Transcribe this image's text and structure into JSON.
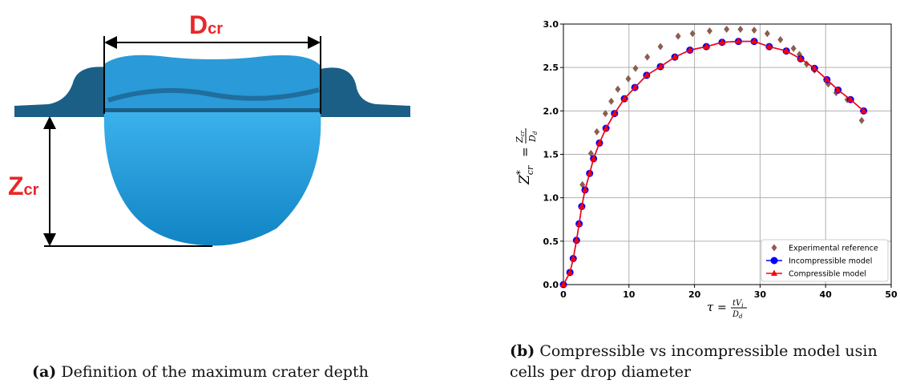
{
  "figure_a": {
    "d_label": "D",
    "d_sub": "cr",
    "z_label": "Z",
    "z_sub": "cr",
    "caption_tag": "(a)",
    "caption": "Definition of the maximum crater depth"
  },
  "figure_b": {
    "caption_tag": "(b)",
    "caption_line1": "Compressible vs incompressible model usin",
    "caption_line2": "cells per drop diameter"
  },
  "chart_data": {
    "type": "scatter",
    "xlabel": {
      "symbol": "τ",
      "eq": "=",
      "num": "tV",
      "num_sub": "i",
      "den": "D",
      "den_sub": "d"
    },
    "ylabel": {
      "symbol": "Z",
      "sup": "*",
      "sub": "cr",
      "eq": "=",
      "num": "Z",
      "num_sub": "cr",
      "den": "D",
      "den_sub": "d"
    },
    "xlim": [
      0,
      50
    ],
    "xticks": [
      0,
      10,
      20,
      30,
      40,
      50
    ],
    "ylim": [
      0,
      3
    ],
    "yticks": [
      {
        "value": 0,
        "label": "0.0"
      },
      0.5,
      {
        "value": 1,
        "label": "1.0"
      },
      1.5,
      {
        "value": 2,
        "label": "2.0"
      },
      2.5,
      {
        "value": 3,
        "label": "3.0"
      }
    ],
    "grid": true,
    "legend": "lower right",
    "series": [
      {
        "name": "Experimental reference",
        "color": "#8b5e4e",
        "marker": "diamond",
        "line": false,
        "x": [
          2.9,
          4.2,
          5.1,
          6.4,
          7.3,
          8.3,
          9.9,
          11.0,
          12.8,
          14.8,
          17.5,
          19.7,
          22.3,
          24.9,
          27.0,
          29.1,
          31.1,
          33.1,
          35.1,
          36.0,
          37.1,
          38.3,
          40.4,
          41.6,
          43.3,
          45.5
        ],
        "values": [
          1.15,
          1.51,
          1.76,
          1.97,
          2.11,
          2.25,
          2.37,
          2.49,
          2.62,
          2.74,
          2.86,
          2.89,
          2.92,
          2.94,
          2.94,
          2.93,
          2.89,
          2.82,
          2.72,
          2.65,
          2.54,
          2.47,
          2.31,
          2.21,
          2.13,
          1.89
        ]
      },
      {
        "name": "Incompressible model",
        "color": "#0000ff",
        "marker": "circle",
        "line": true,
        "x": [
          0,
          1.0,
          1.5,
          2.0,
          2.4,
          2.8,
          3.3,
          4.0,
          4.6,
          5.5,
          6.5,
          7.8,
          9.3,
          10.9,
          12.7,
          14.8,
          17.0,
          19.3,
          21.8,
          24.2,
          26.7,
          29.1,
          31.4,
          34.0,
          36.2,
          38.3,
          40.2,
          41.9,
          43.8,
          45.8
        ],
        "values": [
          0,
          0.14,
          0.3,
          0.51,
          0.7,
          0.9,
          1.09,
          1.28,
          1.45,
          1.63,
          1.8,
          1.97,
          2.14,
          2.27,
          2.41,
          2.51,
          2.62,
          2.7,
          2.74,
          2.79,
          2.8,
          2.8,
          2.74,
          2.69,
          2.6,
          2.49,
          2.36,
          2.24,
          2.13,
          2.0
        ]
      },
      {
        "name": "Compressible model",
        "color": "#ff0000",
        "marker": "triangle",
        "line": true,
        "x": [
          0,
          1.0,
          1.5,
          2.0,
          2.4,
          2.8,
          3.3,
          4.0,
          4.6,
          5.5,
          6.5,
          7.8,
          9.3,
          10.9,
          12.7,
          14.8,
          17.0,
          19.3,
          21.8,
          24.2,
          26.7,
          29.1,
          31.4,
          34.0,
          36.2,
          38.3,
          40.2,
          41.9,
          43.8,
          45.8
        ],
        "values": [
          0,
          0.14,
          0.3,
          0.51,
          0.7,
          0.9,
          1.09,
          1.28,
          1.45,
          1.63,
          1.8,
          1.97,
          2.14,
          2.27,
          2.41,
          2.51,
          2.62,
          2.7,
          2.74,
          2.79,
          2.8,
          2.8,
          2.74,
          2.69,
          2.6,
          2.49,
          2.36,
          2.24,
          2.13,
          2.0
        ]
      }
    ]
  }
}
